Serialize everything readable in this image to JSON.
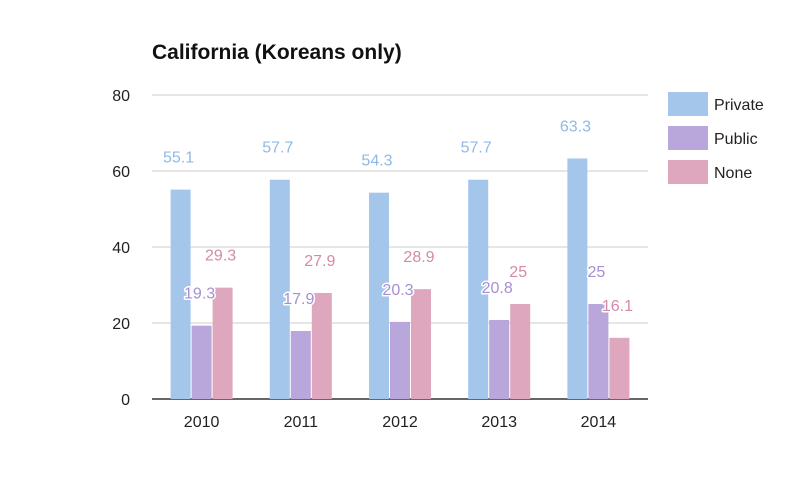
{
  "chart_data": {
    "type": "bar",
    "title": "California (Koreans only)",
    "xlabel": "",
    "ylabel": "",
    "categories": [
      "2010",
      "2011",
      "2012",
      "2013",
      "2014"
    ],
    "ylim": [
      0,
      80
    ],
    "yticks": [
      0,
      20,
      40,
      60,
      80
    ],
    "grid": true,
    "legend": "right",
    "series": [
      {
        "name": "Private",
        "color": "#a4c6eb",
        "label_color": "#8fb9e6",
        "values": [
          55.1,
          57.7,
          54.3,
          57.7,
          63.3
        ]
      },
      {
        "name": "Public",
        "color": "#b9a6da",
        "label_color": "#a58fd2",
        "values": [
          19.3,
          17.9,
          20.3,
          20.8,
          25
        ]
      },
      {
        "name": "None",
        "color": "#dea7bd",
        "label_color": "#d48aa8",
        "values": [
          29.3,
          27.9,
          28.9,
          25,
          16.1
        ]
      }
    ]
  }
}
